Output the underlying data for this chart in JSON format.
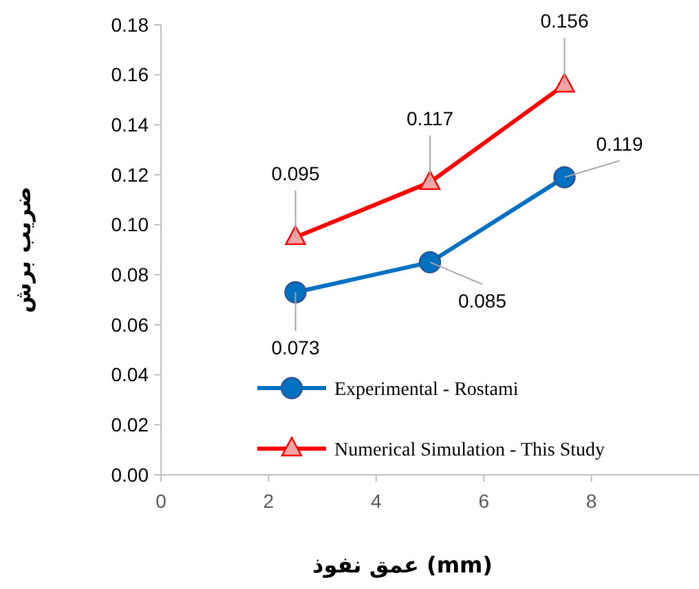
{
  "chart_data": {
    "type": "line",
    "xlabel": "عمق نفوذ (mm)",
    "ylabel": "ضریب برش",
    "x": [
      2.5,
      5,
      7.5
    ],
    "xlim": [
      0,
      10
    ],
    "xticks": [
      0,
      2,
      4,
      6,
      8
    ],
    "ylim": [
      0,
      0.18
    ],
    "yticks": [
      {
        "value": 0,
        "label": "0.00"
      },
      {
        "value": 0.02,
        "label": "0.02"
      },
      {
        "value": 0.04,
        "label": "0.04"
      },
      {
        "value": 0.06,
        "label": "0.06"
      },
      {
        "value": 0.08,
        "label": "0.08"
      },
      {
        "value": 0.1,
        "label": "0.10"
      },
      {
        "value": 0.12,
        "label": "0.12"
      },
      {
        "value": 0.14,
        "label": "0.14"
      },
      {
        "value": 0.16,
        "label": "0.16"
      },
      {
        "value": 0.18,
        "label": "0.18"
      }
    ],
    "grid": false,
    "legend": "bottom right",
    "data_labels": true,
    "series": [
      {
        "name": "Experimental - Rostami",
        "color": "#0070c0",
        "marker": "circle",
        "values": [
          0.073,
          0.085,
          0.119
        ]
      },
      {
        "name": "Numerical Simulation - This Study",
        "color": "#ff0000",
        "marker": "triangle",
        "values": [
          0.095,
          0.117,
          0.156
        ]
      }
    ]
  }
}
